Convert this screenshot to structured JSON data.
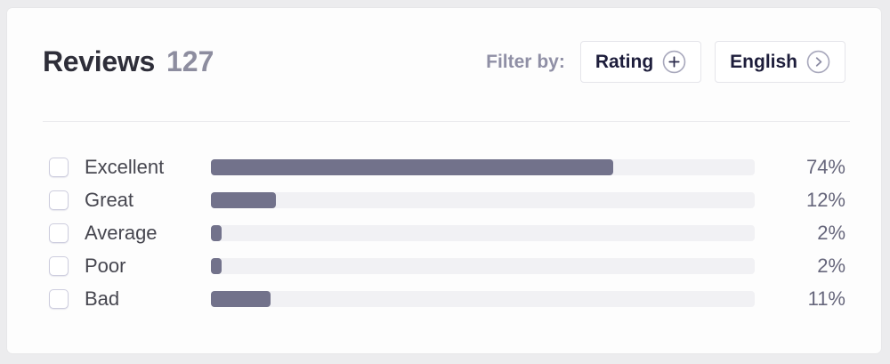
{
  "header": {
    "title": "Reviews",
    "count": "127",
    "filter_label": "Filter by:",
    "rating_button": {
      "label": "Rating",
      "icon": "plus-circle-icon"
    },
    "language_button": {
      "label": "English",
      "icon": "chevron-right-circle-icon"
    }
  },
  "rows": [
    {
      "label": "Excellent",
      "percent": 74,
      "percent_label": "74%",
      "checked": false
    },
    {
      "label": "Great",
      "percent": 12,
      "percent_label": "12%",
      "checked": false
    },
    {
      "label": "Average",
      "percent": 2,
      "percent_label": "2%",
      "checked": false
    },
    {
      "label": "Poor",
      "percent": 2,
      "percent_label": "2%",
      "checked": false
    },
    {
      "label": "Bad",
      "percent": 11,
      "percent_label": "11%",
      "checked": false
    }
  ],
  "chart_data": {
    "type": "bar",
    "orientation": "horizontal",
    "title": "Reviews",
    "total_count": 127,
    "categories": [
      "Excellent",
      "Great",
      "Average",
      "Poor",
      "Bad"
    ],
    "values": [
      74,
      12,
      2,
      2,
      11
    ],
    "value_labels": [
      "74%",
      "12%",
      "2%",
      "2%",
      "11%"
    ],
    "xlim": [
      0,
      100
    ],
    "grid": false,
    "legend": false
  },
  "colors": {
    "bar_fill": "#72728b",
    "bar_track": "#f1f1f4",
    "title_dark": "#2e2e39",
    "muted_purple": "#8f8fa5",
    "button_text": "#1d1d3b",
    "icon_circle": "#a8a8bc"
  }
}
